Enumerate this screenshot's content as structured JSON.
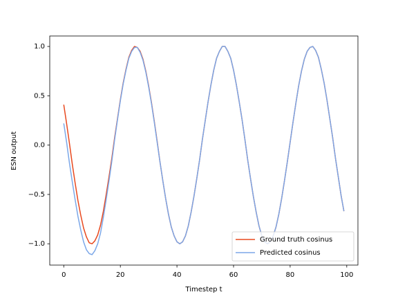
{
  "chart_data": {
    "type": "line",
    "xlabel": "Timestep t",
    "ylabel": "ESN output",
    "x": [
      0,
      1,
      2,
      3,
      4,
      5,
      6,
      7,
      8,
      9,
      10,
      11,
      12,
      13,
      14,
      15,
      16,
      17,
      18,
      19,
      20,
      21,
      22,
      23,
      24,
      25,
      26,
      27,
      28,
      29,
      30,
      31,
      32,
      33,
      34,
      35,
      36,
      37,
      38,
      39,
      40,
      41,
      42,
      43,
      44,
      45,
      46,
      47,
      48,
      49,
      50,
      51,
      52,
      53,
      54,
      55,
      56,
      57,
      58,
      59,
      60,
      61,
      62,
      63,
      64,
      65,
      66,
      67,
      68,
      69,
      70,
      71,
      72,
      73,
      74,
      75,
      76,
      77,
      78,
      79,
      80,
      81,
      82,
      83,
      84,
      85,
      86,
      87,
      88,
      89,
      90,
      91,
      92,
      93,
      94,
      95,
      96,
      97,
      98,
      99
    ],
    "series": [
      {
        "name": "Ground truth cosinus",
        "color": "#e8481e",
        "values": [
          0.41,
          0.22,
          0.02,
          -0.19,
          -0.38,
          -0.56,
          -0.71,
          -0.84,
          -0.93,
          -0.99,
          -1.0,
          -0.97,
          -0.91,
          -0.81,
          -0.67,
          -0.5,
          -0.32,
          -0.13,
          0.08,
          0.27,
          0.46,
          0.63,
          0.77,
          0.89,
          0.96,
          1.0,
          0.99,
          0.95,
          0.87,
          0.75,
          0.6,
          0.43,
          0.24,
          0.04,
          -0.17,
          -0.36,
          -0.54,
          -0.7,
          -0.83,
          -0.92,
          -0.98,
          -1.0,
          -0.98,
          -0.92,
          -0.82,
          -0.68,
          -0.52,
          -0.34,
          -0.15,
          0.06,
          0.25,
          0.44,
          0.61,
          0.76,
          0.88,
          0.95,
          1.0,
          1.0,
          0.95,
          0.88,
          0.76,
          0.61,
          0.44,
          0.26,
          0.06,
          -0.15,
          -0.34,
          -0.52,
          -0.68,
          -0.82,
          -0.92,
          -0.98,
          -1.0,
          -0.98,
          -0.92,
          -0.83,
          -0.7,
          -0.54,
          -0.36,
          -0.17,
          0.03,
          0.23,
          0.42,
          0.6,
          0.75,
          0.87,
          0.95,
          0.99,
          1.0,
          0.96,
          0.89,
          0.77,
          0.63,
          0.46,
          0.27,
          0.08,
          -0.13,
          -0.32,
          -0.51,
          -0.67
        ]
      },
      {
        "name": "Predicted cosinus",
        "color": "#7ba7e8",
        "values": [
          0.22,
          0.03,
          -0.18,
          -0.37,
          -0.55,
          -0.72,
          -0.86,
          -0.98,
          -1.06,
          -1.1,
          -1.11,
          -1.07,
          -1.0,
          -0.89,
          -0.73,
          -0.55,
          -0.36,
          -0.16,
          0.06,
          0.26,
          0.45,
          0.62,
          0.76,
          0.88,
          0.95,
          0.99,
          0.99,
          0.94,
          0.86,
          0.74,
          0.59,
          0.42,
          0.23,
          0.03,
          -0.17,
          -0.36,
          -0.54,
          -0.7,
          -0.83,
          -0.92,
          -0.98,
          -1.0,
          -0.98,
          -0.92,
          -0.82,
          -0.68,
          -0.52,
          -0.34,
          -0.15,
          0.06,
          0.25,
          0.44,
          0.61,
          0.76,
          0.88,
          0.95,
          1.0,
          1.0,
          0.95,
          0.88,
          0.76,
          0.61,
          0.44,
          0.26,
          0.06,
          -0.15,
          -0.34,
          -0.52,
          -0.68,
          -0.82,
          -0.92,
          -0.98,
          -1.0,
          -0.98,
          -0.92,
          -0.83,
          -0.7,
          -0.54,
          -0.36,
          -0.17,
          0.03,
          0.23,
          0.42,
          0.6,
          0.75,
          0.87,
          0.95,
          0.99,
          1.0,
          0.96,
          0.89,
          0.77,
          0.63,
          0.46,
          0.27,
          0.08,
          -0.13,
          -0.32,
          -0.51,
          -0.67
        ]
      }
    ],
    "xlim": [
      -4.95,
      103.95
    ],
    "xticks": [
      0,
      20,
      40,
      60,
      80,
      100
    ],
    "ylim": [
      -1.216,
      1.106
    ],
    "yticks": [
      {
        "value": -1.0,
        "label": "−1.0"
      },
      {
        "value": -0.5,
        "label": "−0.5"
      },
      {
        "value": 0.0,
        "label": "0.0"
      },
      0.5,
      {
        "value": 1.0,
        "label": "1.0"
      }
    ],
    "grid": false,
    "legend": "lower right"
  }
}
